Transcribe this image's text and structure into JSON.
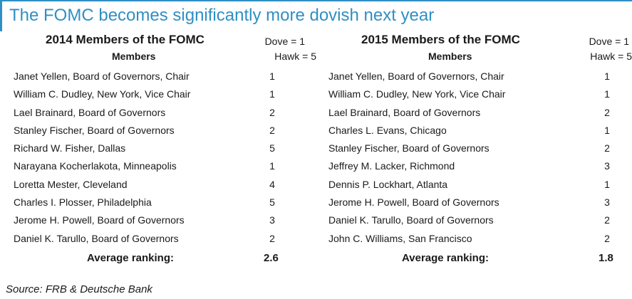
{
  "title": "The FOMC becomes significantly more dovish next year",
  "left": {
    "table_title": "2014 Members of the FOMC",
    "members_header": "Members",
    "dove_label": "Dove = 1",
    "hawk_label": "Hawk = 5",
    "rows": [
      {
        "name": "Janet Yellen, Board of Governors, Chair",
        "score": "1"
      },
      {
        "name": "William C. Dudley, New York, Vice Chair",
        "score": "1"
      },
      {
        "name": "Lael Brainard, Board of Governors",
        "score": "2"
      },
      {
        "name": "Stanley Fischer, Board of Governors",
        "score": "2"
      },
      {
        "name": "Richard W. Fisher, Dallas",
        "score": "5"
      },
      {
        "name": "Narayana Kocherlakota, Minneapolis",
        "score": "1"
      },
      {
        "name": "Loretta Mester, Cleveland",
        "score": "4"
      },
      {
        "name": "Charles I. Plosser, Philadelphia",
        "score": "5"
      },
      {
        "name": "Jerome H. Powell, Board of Governors",
        "score": "3"
      },
      {
        "name": "Daniel K. Tarullo, Board of Governors",
        "score": "2"
      }
    ],
    "avg_label": "Average ranking:",
    "avg_value": "2.6"
  },
  "right": {
    "table_title": "2015 Members of the FOMC",
    "members_header": "Members",
    "dove_label": "Dove = 1",
    "hawk_label": "Hawk = 5",
    "rows": [
      {
        "name": "Janet Yellen, Board of Governors, Chair",
        "score": "1"
      },
      {
        "name": "William C. Dudley, New York, Vice Chair",
        "score": "1"
      },
      {
        "name": "Lael Brainard, Board of Governors",
        "score": "2"
      },
      {
        "name": "Charles L. Evans, Chicago",
        "score": "1"
      },
      {
        "name": "Stanley Fischer, Board of Governors",
        "score": "2"
      },
      {
        "name": "Jeffrey M. Lacker, Richmond",
        "score": "3"
      },
      {
        "name": "Dennis P. Lockhart, Atlanta",
        "score": "1"
      },
      {
        "name": "Jerome H. Powell, Board of Governors",
        "score": "3"
      },
      {
        "name": "Daniel K. Tarullo, Board of Governors",
        "score": "2"
      },
      {
        "name": "John C. Williams, San Francisco",
        "score": "2"
      }
    ],
    "avg_label": "Average ranking:",
    "avg_value": "1.8"
  },
  "source": "Source: FRB & Deutsche Bank"
}
